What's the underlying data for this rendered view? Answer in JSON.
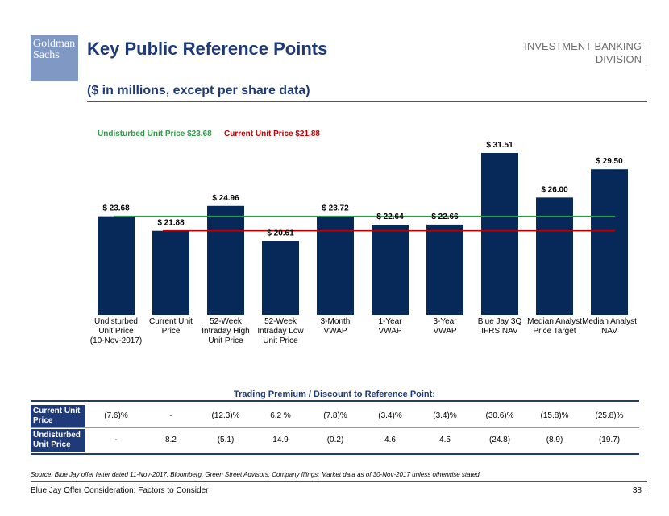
{
  "header": {
    "logo_line1": "Goldman",
    "logo_line2": "Sachs",
    "title": "Key Public Reference Points",
    "division_line1": "INVESTMENT BANKING",
    "division_line2": "DIVISION",
    "subtitle": "($ in millions, except per share data)"
  },
  "colors": {
    "bar": "#06295a",
    "undisturbed_line": "#2e9a47",
    "current_line": "#c00000",
    "title": "#1f3a78"
  },
  "reference_lines": {
    "undisturbed": {
      "label": "Undisturbed Unit Price $23.68",
      "value": 23.68
    },
    "current": {
      "label": "Current Unit Price $21.88",
      "value": 21.88
    }
  },
  "chart_data": {
    "type": "bar",
    "categories": [
      [
        "Undisturbed",
        "Unit Price",
        "(10-Nov-2017)"
      ],
      [
        "Current Unit",
        "Price"
      ],
      [
        "52-Week",
        "Intraday High",
        "Unit Price"
      ],
      [
        "52-Week",
        "Intraday Low",
        "Unit Price"
      ],
      [
        "3-Month",
        "VWAP"
      ],
      [
        "1-Year",
        "VWAP"
      ],
      [
        "3-Year",
        "VWAP"
      ],
      [
        "Blue Jay 3Q",
        "IFRS NAV"
      ],
      [
        "Median Analyst",
        "Price Target"
      ],
      [
        "Median Analyst",
        "NAV"
      ]
    ],
    "values": [
      23.68,
      21.88,
      24.96,
      20.61,
      23.72,
      22.64,
      22.66,
      31.51,
      26.0,
      29.5
    ],
    "value_labels": [
      "$ 23.68",
      "$ 21.88",
      "$ 24.96",
      "$ 20.61",
      "$ 23.72",
      "$ 22.64",
      "$ 22.66",
      "$ 31.51",
      "$ 26.00",
      "$ 29.50"
    ],
    "ylim": [
      11.5,
      31.51
    ],
    "title": "",
    "xlabel": "",
    "ylabel": "",
    "grid": false
  },
  "table": {
    "title": "Trading Premium / Discount to Reference Point:",
    "rows": [
      {
        "label": "Current Unit Price",
        "values": [
          "(7.6)%",
          "-",
          "(12.3)%",
          "6.2 %",
          "(7.8)%",
          "(3.4)%",
          "(3.4)%",
          "(30.6)%",
          "(15.8)%",
          "(25.8)%"
        ]
      },
      {
        "label": "Undisturbed Unit Price",
        "values": [
          "-",
          "8.2",
          "(5.1)",
          "14.9",
          "(0.2)",
          "4.6",
          "4.5",
          "(24.8)",
          "(8.9)",
          "(19.7)"
        ]
      }
    ]
  },
  "footer": {
    "source": "Source: Blue Jay offer letter dated 11-Nov-2017, Bloomberg, Green Street Advisors, Company filings; Market data as of 30-Nov-2017 unless otherwise stated",
    "left": "Blue Jay Offer Consideration: Factors to Consider",
    "page": "38"
  }
}
